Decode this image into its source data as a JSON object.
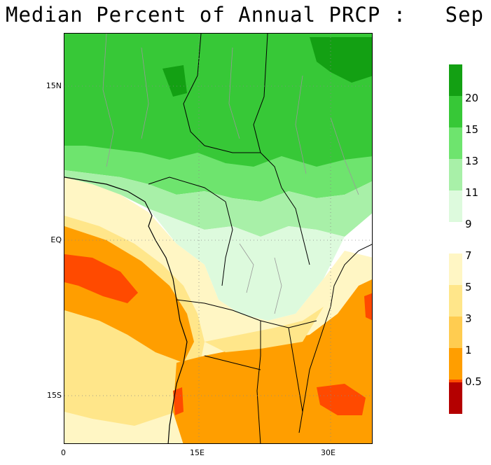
{
  "title": "Median Percent of Annual PRCP :   Sep",
  "map": {
    "lat_ticks": [
      "15N",
      "EQ",
      "15S"
    ],
    "lon_ticks": [
      "0",
      "15E",
      "30E"
    ]
  },
  "legend": {
    "upper": {
      "labels": [
        "20",
        "15",
        "13",
        "11",
        "9"
      ],
      "colors": [
        "#13a013",
        "#37c837",
        "#6ee46e",
        "#a8f0a8",
        "#ddfadd",
        "#ffffff"
      ]
    },
    "lower": {
      "labels": [
        "7",
        "5",
        "3",
        "1",
        "0.5"
      ],
      "colors": [
        "#fff6c4",
        "#ffe68a",
        "#ffcc50",
        "#ff9e00",
        "#ff4a00",
        "#b40000"
      ]
    }
  }
}
